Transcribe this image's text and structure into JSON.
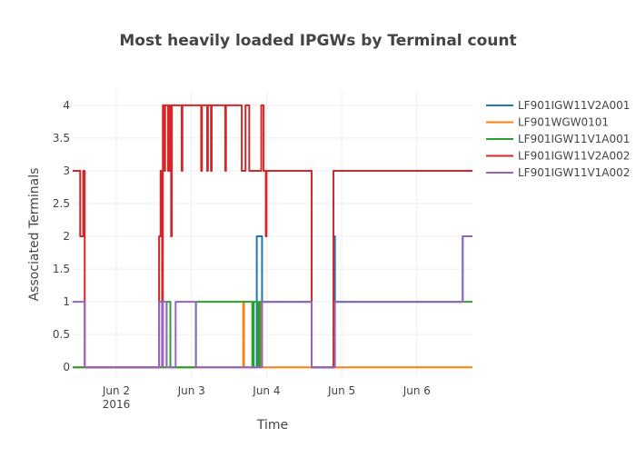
{
  "chart_data": {
    "type": "line",
    "line_shape": "step",
    "title": "Most heavily loaded IPGWs by Terminal count",
    "xlabel": "Time",
    "ylabel": "Associated Terminals",
    "x_units": "day of June 2016 (fractional)",
    "xlim": [
      1.42,
      6.74
    ],
    "ylim": [
      -0.15,
      4.22
    ],
    "grid": true,
    "legend_position": "top-right outside",
    "x_ticks": [
      {
        "value": 2,
        "label": "Jun 2",
        "sublabel": "2016"
      },
      {
        "value": 3,
        "label": "Jun 3"
      },
      {
        "value": 4,
        "label": "Jun 4"
      },
      {
        "value": 5,
        "label": "Jun 5"
      },
      {
        "value": 6,
        "label": "Jun 6"
      }
    ],
    "y_ticks": [
      {
        "value": 0,
        "label": "0"
      },
      {
        "value": 0.5,
        "label": "0.5"
      },
      {
        "value": 1,
        "label": "1"
      },
      {
        "value": 1.5,
        "label": "1.5"
      },
      {
        "value": 2,
        "label": "2"
      },
      {
        "value": 2.5,
        "label": "2.5"
      },
      {
        "value": 3,
        "label": "3"
      },
      {
        "value": 3.5,
        "label": "3.5"
      },
      {
        "value": 4,
        "label": "4"
      }
    ],
    "series": [
      {
        "name": "LF901IGW11V2A001",
        "color": "#1f77b4",
        "points": [
          [
            1.42,
            0
          ],
          [
            3.87,
            2
          ],
          [
            3.94,
            1
          ],
          [
            4.6,
            0
          ],
          [
            4.89,
            2
          ],
          [
            4.91,
            1
          ],
          [
            6.61,
            2
          ]
        ]
      },
      {
        "name": "LF901WGW0101",
        "color": "#ff7f0e",
        "points": [
          [
            1.42,
            0
          ],
          [
            3.69,
            1
          ],
          [
            3.7,
            0
          ],
          [
            3.92,
            1
          ],
          [
            3.94,
            0
          ]
        ]
      },
      {
        "name": "LF901IGW11V1A001",
        "color": "#2ca02c",
        "points": [
          [
            1.42,
            0
          ],
          [
            2.67,
            1
          ],
          [
            2.72,
            0
          ],
          [
            3.06,
            1
          ],
          [
            3.81,
            0
          ],
          [
            3.83,
            1
          ],
          [
            3.89,
            0
          ],
          [
            3.91,
            1
          ],
          [
            4.6,
            0
          ],
          [
            4.9,
            1
          ]
        ]
      },
      {
        "name": "LF901IGW11V2A002",
        "color": "#d62728",
        "points": [
          [
            1.42,
            3
          ],
          [
            1.52,
            2
          ],
          [
            1.56,
            3
          ],
          [
            1.58,
            0
          ],
          [
            2.57,
            2
          ],
          [
            2.59,
            3
          ],
          [
            2.61,
            0
          ],
          [
            2.62,
            4
          ],
          [
            2.64,
            3
          ],
          [
            2.65,
            4
          ],
          [
            2.69,
            3
          ],
          [
            2.71,
            4
          ],
          [
            2.73,
            2
          ],
          [
            2.74,
            4
          ],
          [
            2.87,
            3
          ],
          [
            2.88,
            4
          ],
          [
            3.13,
            3
          ],
          [
            3.14,
            4
          ],
          [
            3.21,
            3
          ],
          [
            3.22,
            4
          ],
          [
            3.26,
            3
          ],
          [
            3.27,
            4
          ],
          [
            3.45,
            3
          ],
          [
            3.46,
            4
          ],
          [
            3.67,
            3
          ],
          [
            3.72,
            4
          ],
          [
            3.77,
            3
          ],
          [
            3.93,
            4
          ],
          [
            3.96,
            3
          ],
          [
            3.99,
            2
          ],
          [
            4.0,
            3
          ],
          [
            4.6,
            0
          ],
          [
            4.89,
            3
          ]
        ]
      },
      {
        "name": "LF901IGW11V1A002",
        "color": "#9467bd",
        "points": [
          [
            1.42,
            1
          ],
          [
            1.58,
            0
          ],
          [
            2.57,
            1
          ],
          [
            2.61,
            0
          ],
          [
            2.62,
            1
          ],
          [
            2.67,
            0
          ],
          [
            2.79,
            1
          ],
          [
            3.06,
            0
          ],
          [
            3.94,
            1
          ],
          [
            4.6,
            0
          ],
          [
            4.91,
            1
          ],
          [
            6.61,
            2
          ]
        ]
      }
    ]
  }
}
